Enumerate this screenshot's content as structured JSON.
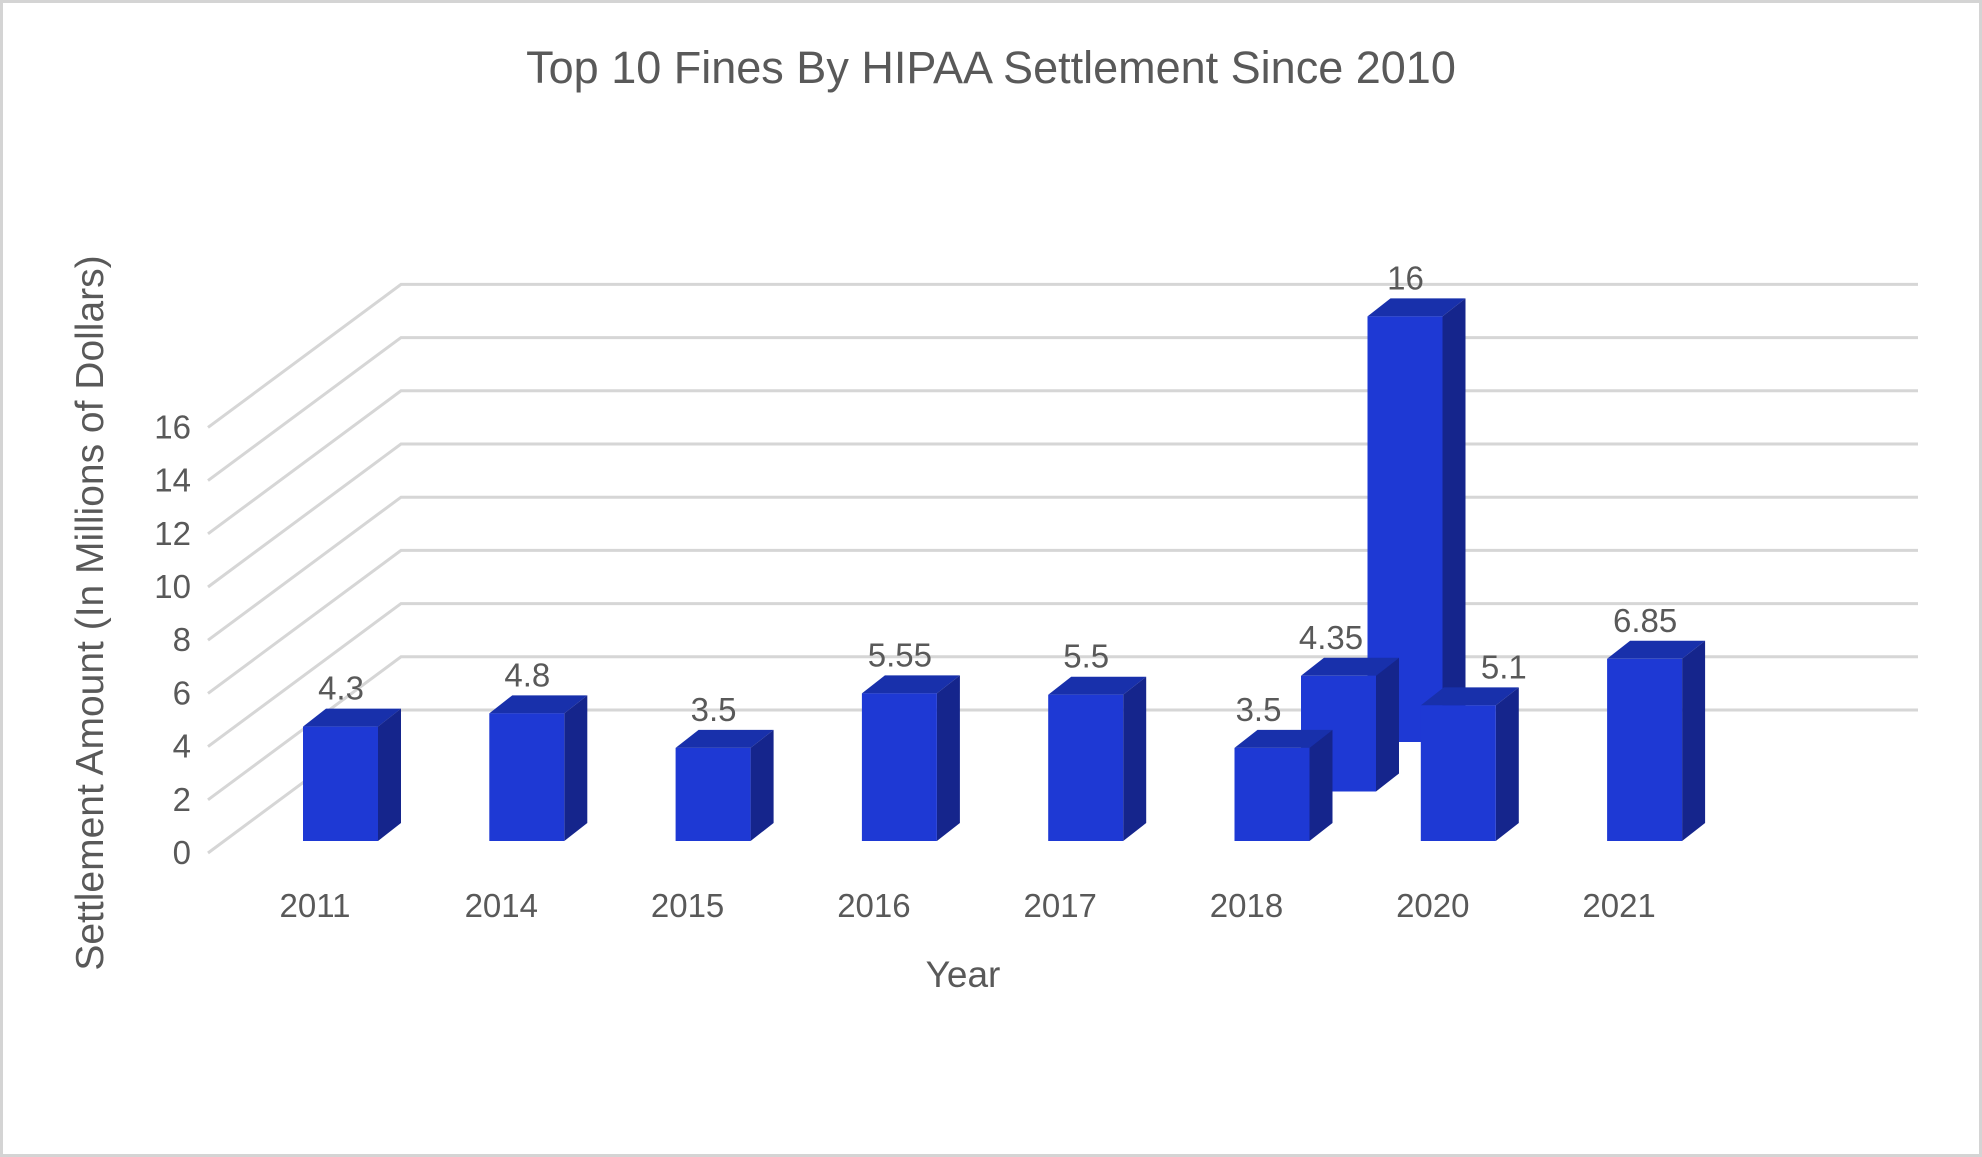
{
  "window": {
    "background": "#ffffff",
    "border_color": "#d4d4d4"
  },
  "chart_data": {
    "type": "bar",
    "variant": "3d-column",
    "title": "Top 10 Fines By HIPAA Settlement Since 2010",
    "xlabel": "Year",
    "ylabel": "Settlement Amount (In Millions of Dollars)",
    "categories": [
      "2011",
      "2014",
      "2015",
      "2016",
      "2017",
      "2018",
      "2020",
      "2021"
    ],
    "y_ticks": [
      0,
      2,
      4,
      6,
      8,
      10,
      12,
      14,
      16
    ],
    "ylim": [
      0,
      16
    ],
    "grid": true,
    "legend_position": "none",
    "bars": [
      {
        "category": "2011",
        "value": 4.3,
        "label": "4.3",
        "depth_row": 0
      },
      {
        "category": "2014",
        "value": 4.8,
        "label": "4.8",
        "depth_row": 0
      },
      {
        "category": "2015",
        "value": 3.5,
        "label": "3.5",
        "depth_row": 0
      },
      {
        "category": "2016",
        "value": 5.55,
        "label": "5.55",
        "depth_row": 0
      },
      {
        "category": "2017",
        "value": 5.5,
        "label": "5.5",
        "depth_row": 0
      },
      {
        "category": "2018",
        "value": 3.5,
        "label": "3.5",
        "depth_row": 0,
        "label_dx": -14
      },
      {
        "category": "2018",
        "value": 4.35,
        "label": "4.35",
        "depth_row": 1,
        "label_dx": -8
      },
      {
        "category": "2018",
        "value": 16,
        "label": "16",
        "depth_row": 2
      },
      {
        "category": "2020",
        "value": 5.1,
        "label": "5.1",
        "depth_row": 0,
        "label_dx": 45
      },
      {
        "category": "2021",
        "value": 6.85,
        "label": "6.85",
        "depth_row": 0
      }
    ],
    "colors": {
      "bar_front": "#1e39d4",
      "bar_top": "#1830ab",
      "bar_side": "#15258c",
      "gridline": "#d6d6d6",
      "text": "#595959"
    }
  }
}
